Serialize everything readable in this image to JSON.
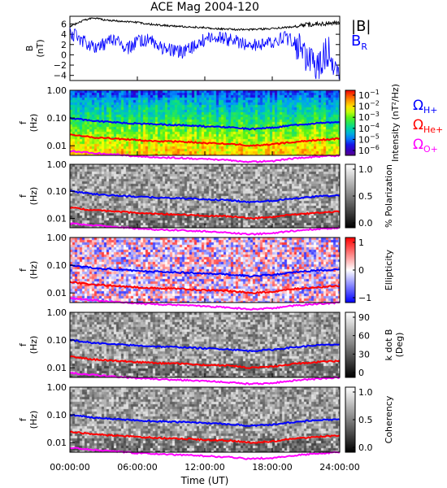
{
  "title": "ACE Mag 2004-120",
  "time_axis": {
    "label": "Time (UT)",
    "ticks": [
      "00:00:00",
      "06:00:00",
      "12:00:00",
      "18:00:00",
      "24:00:00"
    ],
    "range_hours": [
      0,
      24
    ]
  },
  "colors": {
    "B_total": "#000000",
    "B_R": "#0000ff",
    "he_plus": "#ff0000",
    "h_plus": "#0000ff",
    "o_plus": "#ff00ff"
  },
  "chart_data": [
    {
      "type": "line",
      "panel": "magnetic-field",
      "ylabel": [
        "B",
        "(nT)"
      ],
      "ylim": [
        -5,
        7.5
      ],
      "yticks": [
        "6",
        "4",
        "2",
        "0",
        "−2",
        "−4"
      ],
      "ytick_values": [
        6,
        4,
        2,
        0,
        -2,
        -4
      ],
      "x_hours": [
        0,
        1,
        2,
        3,
        4,
        5,
        6,
        7,
        8,
        9,
        10,
        11,
        12,
        13,
        14,
        15,
        16,
        17,
        18,
        19,
        20,
        21,
        22,
        23,
        24
      ],
      "series": [
        {
          "name": "|B|",
          "color": "#000000",
          "values": [
            5.5,
            6.5,
            7.2,
            6.8,
            6.6,
            6.5,
            6.3,
            6.0,
            5.8,
            5.6,
            5.5,
            5.4,
            5.3,
            5.1,
            5.0,
            4.9,
            4.9,
            5.0,
            5.1,
            5.3,
            5.5,
            5.8,
            6.0,
            6.1,
            6.2
          ]
        },
        {
          "name": "B",
          "subscript": "R",
          "color": "#0000ff",
          "values": [
            4.5,
            3.0,
            1.5,
            2.0,
            3.0,
            1.0,
            2.5,
            3.0,
            1.5,
            1.0,
            0.5,
            1.5,
            3.0,
            3.5,
            3.0,
            2.5,
            2.0,
            2.0,
            2.5,
            3.5,
            2.5,
            -0.5,
            -2.5,
            1.0,
            -4.0
          ]
        }
      ]
    },
    {
      "type": "heatmap",
      "panel": "intensity",
      "ylabel": [
        "f",
        "(Hz)"
      ],
      "yticks": [
        "1.00",
        "0.10",
        "0.01"
      ],
      "colorbar_label": "Intensity (nT²/Hz)",
      "colorbar_ticks": [
        "10",
        "10",
        "10",
        "10",
        "10",
        "10"
      ],
      "colorbar_exponents": [
        "−1",
        "−2",
        "−3",
        "−4",
        "−5",
        "−6"
      ],
      "colormap": "rainbow",
      "ion_labels": [
        {
          "symbol": "Ω",
          "ion": "H+",
          "color": "#0000ff"
        },
        {
          "symbol": "Ω",
          "ion": "He+",
          "color": "#ff0000"
        },
        {
          "symbol": "Ω",
          "ion": "O+",
          "color": "#ff00ff"
        }
      ]
    },
    {
      "type": "heatmap",
      "panel": "polarization",
      "ylabel": [
        "f",
        "(Hz)"
      ],
      "yticks": [
        "1.00",
        "0.10",
        "0.01"
      ],
      "colorbar_label": "% Polarization",
      "colorbar_ticks": [
        "1.0",
        "0.5",
        "0.0"
      ],
      "colormap": "grayscale"
    },
    {
      "type": "heatmap",
      "panel": "ellipticity",
      "ylabel": [
        "f",
        "(Hz)"
      ],
      "yticks": [
        "1.00",
        "0.10",
        "0.01"
      ],
      "colorbar_label": "Ellipticity",
      "colorbar_ticks": [
        "1",
        "0",
        "−1"
      ],
      "colormap": "blue-white-red"
    },
    {
      "type": "heatmap",
      "panel": "k-dot-b",
      "ylabel": [
        "f",
        "(Hz)"
      ],
      "yticks": [
        "1.00",
        "0.10",
        "0.01"
      ],
      "colorbar_label": [
        "k dot B",
        "(Deg)"
      ],
      "colorbar_ticks": [
        "90",
        "60",
        "30",
        "0"
      ],
      "colormap": "grayscale"
    },
    {
      "type": "heatmap",
      "panel": "coherency",
      "ylabel": [
        "f",
        "(Hz)"
      ],
      "yticks": [
        "1.00",
        "0.10",
        "0.01"
      ],
      "colorbar_label": "Coherency",
      "colorbar_ticks": [
        "1.0",
        "0.5",
        "0.0"
      ],
      "colormap": "grayscale"
    }
  ],
  "gyrofrequency_lines": {
    "x_hours": [
      0,
      2,
      4,
      6,
      8,
      10,
      12,
      14,
      16,
      18,
      20,
      22,
      24
    ],
    "H+": [
      0.1,
      0.08,
      0.07,
      0.063,
      0.058,
      0.055,
      0.05,
      0.047,
      0.04,
      0.045,
      0.055,
      0.065,
      0.07
    ],
    "He+": [
      0.025,
      0.02,
      0.018,
      0.016,
      0.0145,
      0.014,
      0.0125,
      0.012,
      0.01,
      0.011,
      0.014,
      0.016,
      0.018
    ],
    "O+": [
      0.0065,
      0.0055,
      0.0048,
      0.0042,
      0.0038,
      0.0036,
      0.0033,
      0.003,
      0.0026,
      0.0028,
      0.0035,
      0.004,
      0.0045
    ]
  }
}
